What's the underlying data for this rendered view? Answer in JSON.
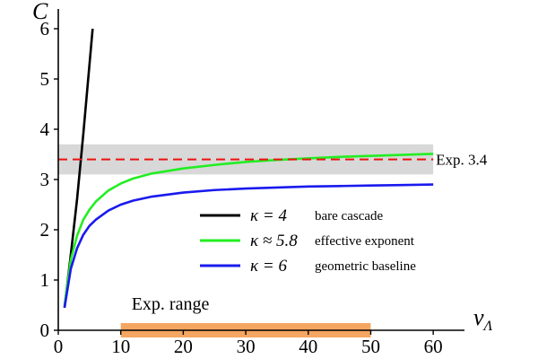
{
  "chart_data": {
    "type": "line",
    "xlabel": "ν",
    "xlabel_sub": "Λ",
    "ylabel": "C",
    "xlim": [
      0,
      65
    ],
    "ylim": [
      0,
      6
    ],
    "x_ticks": [
      0,
      10,
      20,
      30,
      40,
      50,
      60
    ],
    "y_ticks": [
      0,
      1,
      2,
      3,
      4,
      5,
      6
    ],
    "grid": false,
    "legend_position": "center-right",
    "series": [
      {
        "symbol": "κ = 4",
        "description": "bare cascade",
        "color": "#000000",
        "x": [
          1,
          2,
          3,
          4,
          5.5
        ],
        "y": [
          0.45,
          1.5,
          2.6,
          3.9,
          6.0
        ]
      },
      {
        "symbol": "κ ≈ 5.8",
        "description": "effective exponent",
        "color": "#22ee22",
        "x": [
          1,
          2,
          3,
          4,
          5,
          6,
          8,
          10,
          12,
          15,
          20,
          25,
          30,
          35,
          40,
          45,
          50,
          55,
          60
        ],
        "y": [
          0.5,
          1.4,
          1.88,
          2.2,
          2.4,
          2.56,
          2.78,
          2.92,
          3.02,
          3.12,
          3.22,
          3.29,
          3.35,
          3.39,
          3.42,
          3.45,
          3.47,
          3.49,
          3.51
        ]
      },
      {
        "symbol": "κ = 6",
        "description": "geometric baseline",
        "color": "#1a1aee",
        "x": [
          1,
          2,
          3,
          4,
          5,
          6,
          8,
          10,
          12,
          15,
          20,
          25,
          30,
          35,
          40,
          45,
          50,
          55,
          60
        ],
        "y": [
          0.45,
          1.22,
          1.63,
          1.9,
          2.08,
          2.2,
          2.38,
          2.5,
          2.58,
          2.66,
          2.74,
          2.79,
          2.82,
          2.84,
          2.86,
          2.87,
          2.88,
          2.89,
          2.9
        ]
      }
    ],
    "experiment": {
      "label": "Exp. 3.4",
      "value": 3.4,
      "band": [
        3.1,
        3.7
      ],
      "line_color": "#ee1111",
      "band_color": "#d8d8d8"
    },
    "exp_range": {
      "label": "Exp. range",
      "x": [
        10,
        50
      ],
      "color": "#f5a660"
    }
  }
}
